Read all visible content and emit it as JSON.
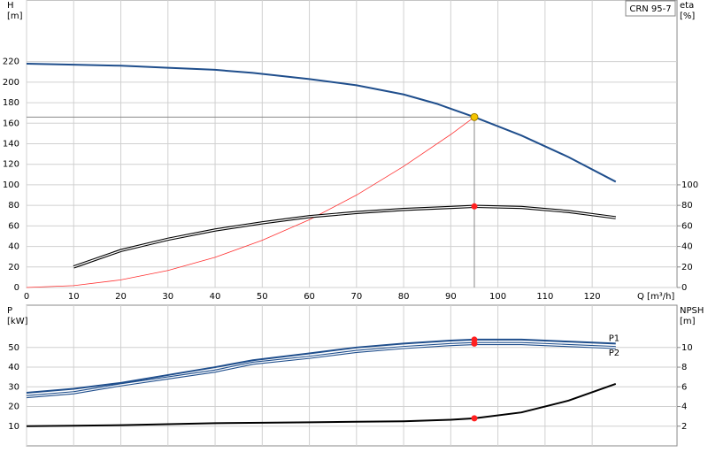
{
  "chart_data": [
    {
      "type": "line",
      "title": "CRN 95-7",
      "ylabel": [
        "H",
        "[m]"
      ],
      "y2label": [
        "eta",
        "[%]"
      ],
      "xlabel": "Q [m³/h]",
      "xlim": [
        0,
        138
      ],
      "xticks": [
        0,
        10,
        20,
        30,
        40,
        50,
        60,
        70,
        80,
        90,
        100,
        110,
        120
      ],
      "ylim": [
        0,
        280
      ],
      "yticks": [
        0,
        20,
        40,
        60,
        80,
        100,
        120,
        140,
        160,
        180,
        200,
        220
      ],
      "y2lim": [
        0,
        280
      ],
      "y2ticks": [
        0,
        20,
        40,
        60,
        80,
        100
      ],
      "grid": true,
      "marker_color": "#ff2020",
      "operating_point": {
        "x": 95,
        "y": 166,
        "color": "#f5c400"
      },
      "series": [
        {
          "color": "#1f4e8c",
          "style": "solid",
          "x": [
            0,
            10,
            20,
            30,
            40,
            48,
            60,
            70,
            80,
            87,
            95,
            105,
            115,
            125
          ],
          "values": [
            218,
            217,
            216,
            214,
            212,
            209,
            203,
            197,
            188,
            179,
            166,
            148,
            127,
            103
          ]
        },
        {
          "color": "#ff3030",
          "style": "thin",
          "x": [
            0,
            10,
            20,
            30,
            40,
            50,
            60,
            70,
            80,
            90,
            95
          ],
          "values": [
            0,
            1.8,
            7.4,
            16.6,
            29.4,
            46,
            66,
            90,
            118,
            149,
            166
          ]
        },
        {
          "color": "#000000",
          "style": "double",
          "axis": "y2",
          "x": [
            10,
            20,
            30,
            40,
            50,
            60,
            70,
            80,
            90,
            95,
            105,
            115,
            125
          ],
          "values": [
            20,
            36,
            47,
            56,
            63,
            69,
            73,
            76,
            78,
            79,
            78,
            74,
            68
          ]
        }
      ]
    },
    {
      "type": "line",
      "ylabel": [
        "P",
        "[kW]"
      ],
      "y2label": [
        "NPSH",
        "[m]"
      ],
      "xlim": [
        0,
        138
      ],
      "ylim": [
        0,
        71.5
      ],
      "yticks": [
        10,
        20,
        30,
        40,
        50
      ],
      "y2lim": [
        0,
        14.3
      ],
      "y2ticks": [
        2,
        4,
        6,
        8,
        10
      ],
      "grid": true,
      "marker_color": "#ff2020",
      "series": [
        {
          "name": "P1",
          "color": "#1f4e8c",
          "style": "solid",
          "x": [
            0,
            10,
            20,
            30,
            40,
            48,
            60,
            70,
            80,
            90,
            95,
            105,
            115,
            125
          ],
          "values": [
            27,
            29,
            32,
            36,
            40,
            43.5,
            47,
            50,
            52,
            53.5,
            54,
            54,
            53,
            52
          ]
        },
        {
          "name": "P2",
          "color": "#1f4e8c",
          "style": "double",
          "x": [
            0,
            10,
            20,
            30,
            40,
            48,
            60,
            70,
            80,
            90,
            95,
            105,
            115,
            125
          ],
          "values": [
            25,
            27,
            31,
            34.5,
            38,
            42,
            45,
            48,
            50,
            51.5,
            52,
            52,
            51,
            50
          ]
        },
        {
          "color": "#000000",
          "style": "solid",
          "axis": "y2",
          "x": [
            0,
            10,
            20,
            30,
            40,
            50,
            60,
            70,
            80,
            90,
            95,
            105,
            115,
            125
          ],
          "values": [
            2.0,
            2.05,
            2.1,
            2.2,
            2.3,
            2.35,
            2.4,
            2.45,
            2.5,
            2.65,
            2.8,
            3.4,
            4.6,
            6.3
          ]
        }
      ]
    }
  ]
}
